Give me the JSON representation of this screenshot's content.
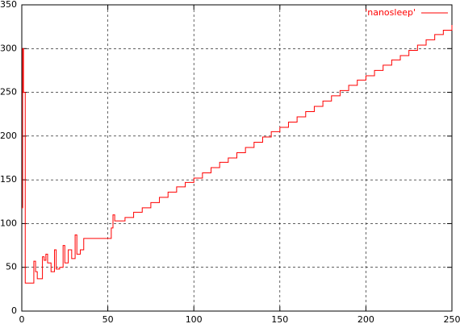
{
  "chart_data": {
    "type": "line",
    "x": [
      0,
      0.5,
      1,
      2,
      7,
      8,
      9,
      12,
      13,
      14,
      15,
      17,
      19,
      20,
      22,
      24,
      25,
      27,
      29,
      31,
      32,
      34,
      36,
      52,
      53,
      54,
      57,
      60,
      65,
      70,
      75,
      80,
      85,
      90,
      95,
      100,
      105,
      110,
      115,
      120,
      125,
      130,
      135,
      140,
      145,
      150,
      155,
      160,
      165,
      170,
      175,
      180,
      185,
      190,
      195,
      200,
      205,
      210,
      215,
      220,
      225,
      230,
      235,
      240,
      245,
      250
    ],
    "series": [
      {
        "name": "'nanosleep'",
        "color": "#ff0000",
        "values": [
          118,
          300,
          250,
          32,
          57,
          45,
          37,
          62,
          58,
          65,
          55,
          45,
          70,
          48,
          50,
          75,
          55,
          70,
          60,
          87,
          65,
          70,
          83,
          95,
          110,
          103,
          103,
          107,
          113,
          118,
          124,
          130,
          136,
          142,
          147,
          152,
          158,
          164,
          170,
          175,
          181,
          187,
          193,
          199,
          205,
          210,
          216,
          222,
          228,
          234,
          240,
          246,
          252,
          258,
          264,
          269,
          275,
          281,
          287,
          292,
          298,
          304,
          310,
          316,
          321,
          327
        ]
      }
    ],
    "xlim": [
      0,
      250
    ],
    "xticks": [
      0,
      50,
      100,
      150,
      200,
      250
    ],
    "ylim": [
      0,
      350
    ],
    "yticks": [
      0,
      50,
      100,
      150,
      200,
      250,
      300,
      350
    ],
    "grid": true,
    "legend": "top-right"
  }
}
